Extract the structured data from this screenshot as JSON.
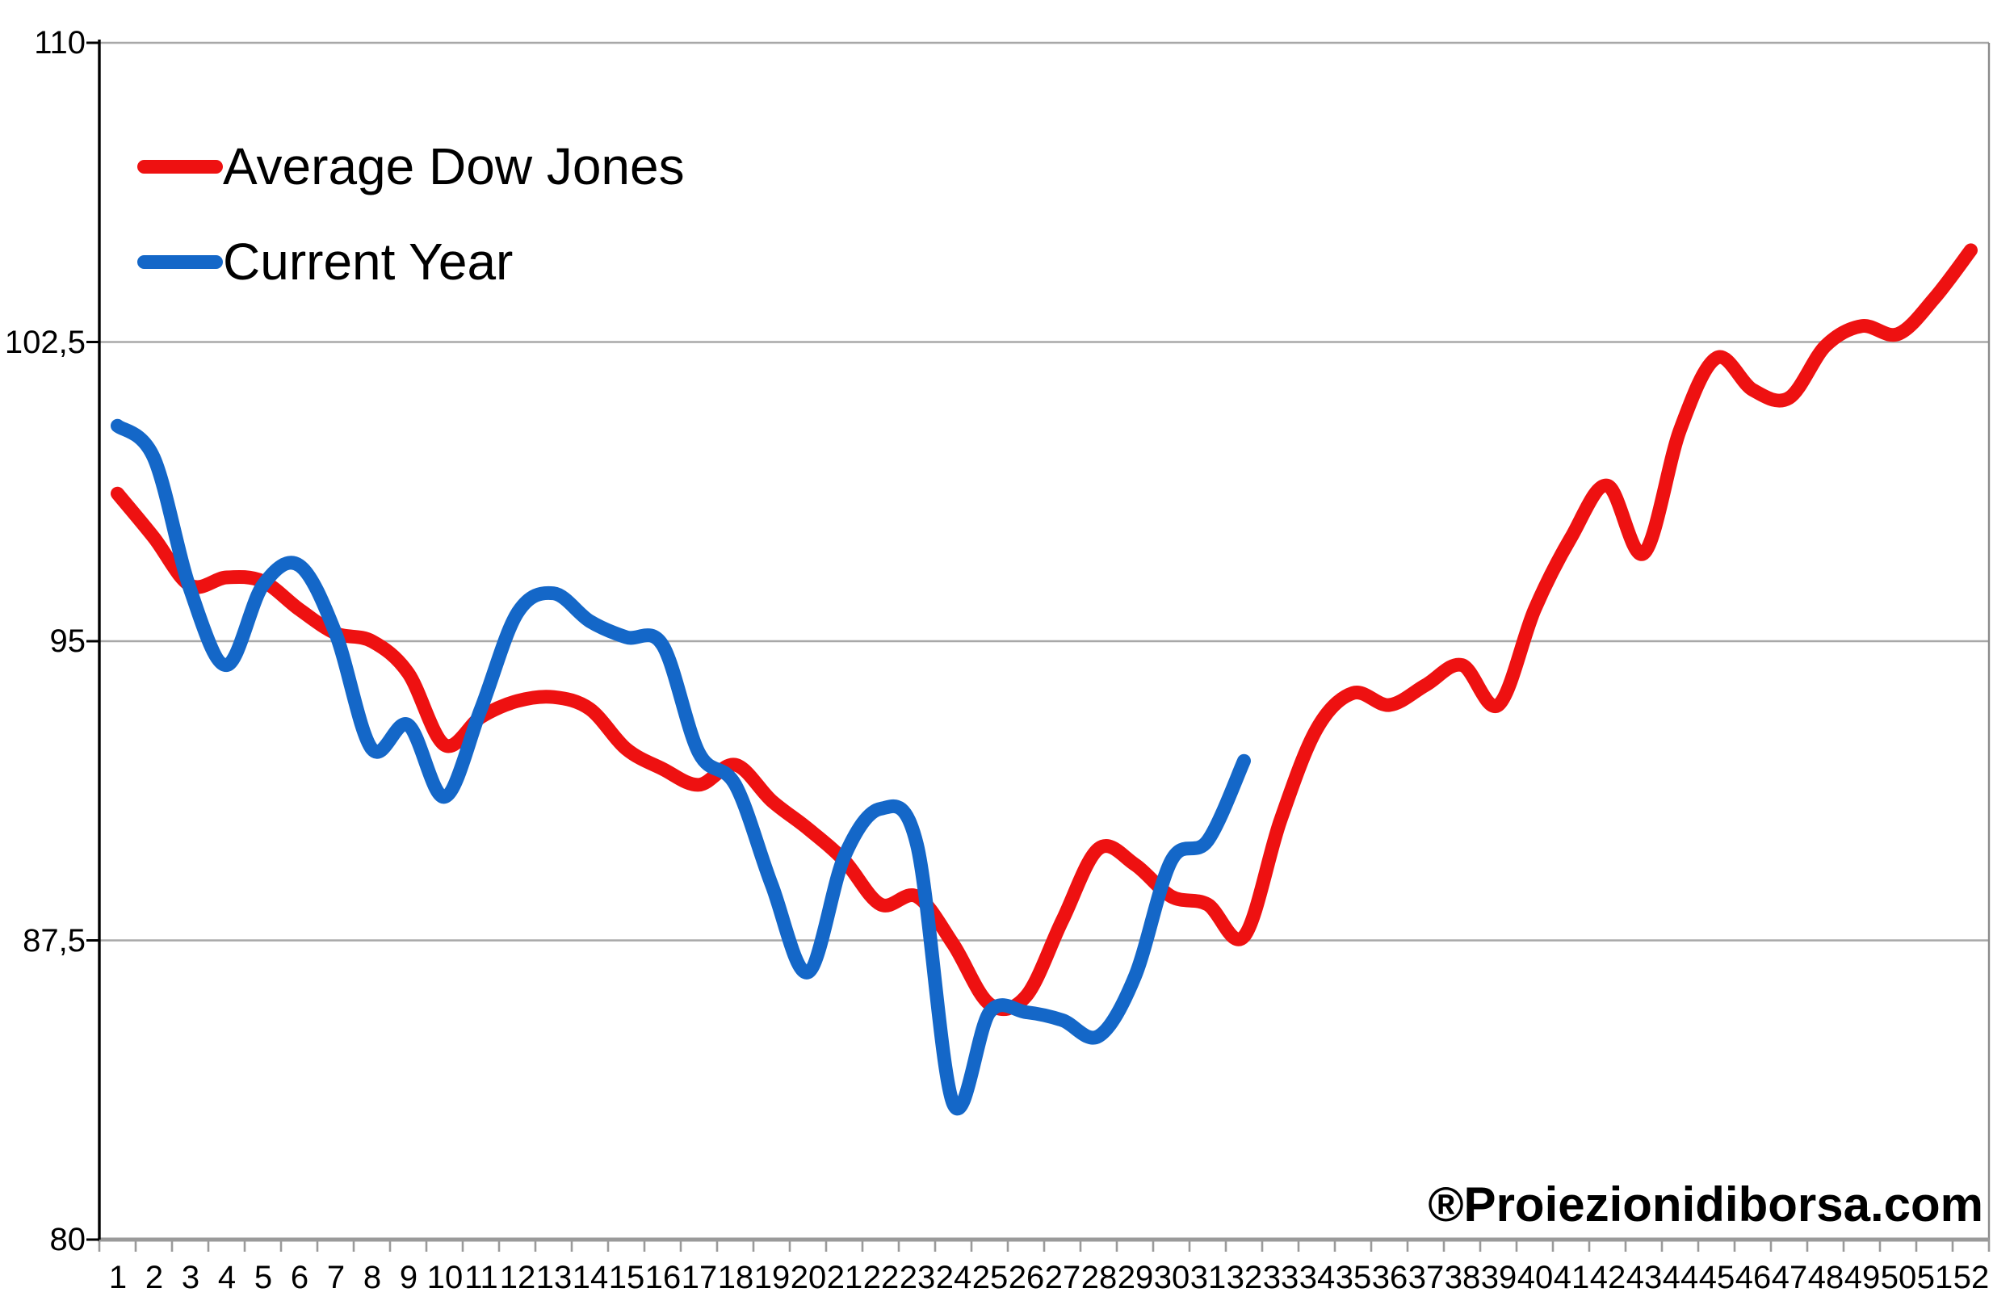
{
  "legend": {
    "items": [
      {
        "label": "Average Dow Jones",
        "color": "#ee1111"
      },
      {
        "label": "Current Year",
        "color": "#1467c8"
      }
    ]
  },
  "watermark": "®Proiezionidiborsa.com",
  "chart_data": {
    "type": "line",
    "title": "",
    "xlabel": "",
    "ylabel": "",
    "smoothed": true,
    "grid": "horizontal",
    "grid_color": "#a8a8a8",
    "axis_color": "#9a9a9a",
    "legend_position": "top-left",
    "ylim": [
      80,
      110
    ],
    "y_ticks": [
      110,
      102.5,
      95,
      87.5,
      80
    ],
    "y_tick_labels": [
      "110",
      "102,5",
      "95",
      "87,5",
      "80"
    ],
    "categories": [
      1,
      2,
      3,
      4,
      5,
      6,
      7,
      8,
      9,
      10,
      11,
      12,
      13,
      14,
      15,
      16,
      17,
      18,
      19,
      20,
      21,
      22,
      23,
      24,
      25,
      26,
      27,
      28,
      29,
      30,
      31,
      32,
      33,
      34,
      35,
      36,
      37,
      38,
      39,
      40,
      41,
      42,
      43,
      44,
      45,
      46,
      47,
      48,
      49,
      50,
      51,
      52
    ],
    "series": [
      {
        "name": "Average Dow Jones",
        "color": "#ee1111",
        "values": [
          98.7,
          97.6,
          96.4,
          96.6,
          96.5,
          95.8,
          95.2,
          95.0,
          94.2,
          92.4,
          93.1,
          93.5,
          93.6,
          93.3,
          92.3,
          91.8,
          91.4,
          91.9,
          91.0,
          90.3,
          89.5,
          88.4,
          88.6,
          87.4,
          85.9,
          86.1,
          88.0,
          89.8,
          89.4,
          88.6,
          88.4,
          87.6,
          90.5,
          92.8,
          93.7,
          93.4,
          93.9,
          94.4,
          93.4,
          95.8,
          97.6,
          98.9,
          97.2,
          100.3,
          102.1,
          101.3,
          101.1,
          102.4,
          102.9,
          102.7,
          103.6,
          104.8
        ]
      },
      {
        "name": "Current Year",
        "color": "#1467c8",
        "values": [
          100.4,
          99.6,
          96.3,
          94.4,
          96.4,
          96.9,
          95.2,
          92.3,
          92.9,
          91.1,
          93.3,
          95.7,
          96.2,
          95.5,
          95.1,
          94.9,
          92.2,
          91.4,
          88.9,
          86.7,
          89.6,
          90.8,
          89.9,
          83.4,
          85.7,
          85.7,
          85.5,
          85.1,
          86.6,
          89.5,
          90.0,
          92.0
        ]
      }
    ]
  }
}
